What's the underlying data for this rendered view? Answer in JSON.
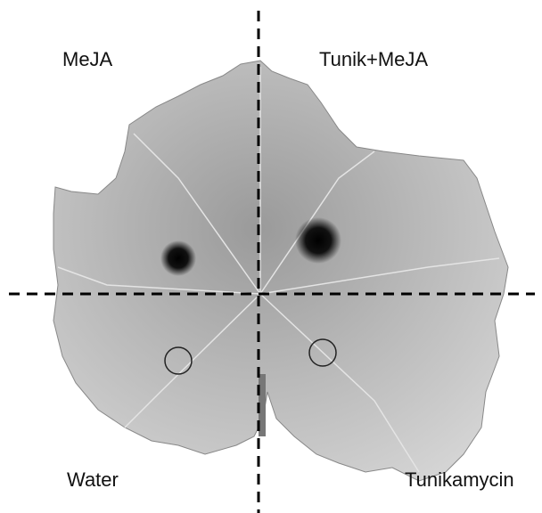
{
  "quadrants": {
    "top_left": "MeJA",
    "top_right": "Tunik+MeJA",
    "bottom_left": "Water",
    "bottom_right": "Tunikamycin"
  }
}
